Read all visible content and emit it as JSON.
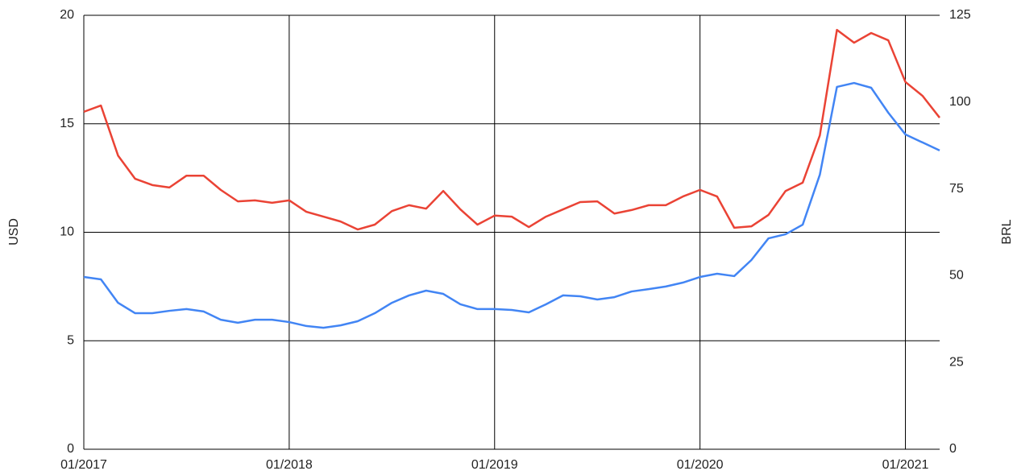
{
  "chart_data": {
    "type": "line",
    "ylabel": "USD",
    "y2label": "BRL",
    "x": [
      "01/2017",
      "02/2017",
      "03/2017",
      "04/2017",
      "05/2017",
      "06/2017",
      "07/2017",
      "08/2017",
      "09/2017",
      "10/2017",
      "11/2017",
      "12/2017",
      "01/2018",
      "02/2018",
      "03/2018",
      "04/2018",
      "05/2018",
      "06/2018",
      "07/2018",
      "08/2018",
      "09/2018",
      "10/2018",
      "11/2018",
      "12/2018",
      "01/2019",
      "02/2019",
      "03/2019",
      "04/2019",
      "05/2019",
      "06/2019",
      "07/2019",
      "08/2019",
      "09/2019",
      "10/2019",
      "11/2019",
      "12/2019",
      "01/2020",
      "02/2020",
      "03/2020",
      "04/2020",
      "05/2020",
      "06/2020",
      "07/2020",
      "08/2020",
      "09/2020",
      "10/2020",
      "11/2020",
      "12/2020",
      "01/2021",
      "02/2021",
      "03/2021"
    ],
    "xlim": [
      "01/2017",
      "03/2021"
    ],
    "xticks": [
      "01/2017",
      "01/2018",
      "01/2019",
      "01/2020",
      "01/2021"
    ],
    "ylim": [
      0,
      20
    ],
    "yticks": [
      0,
      5,
      10,
      15,
      20
    ],
    "y2lim": [
      0,
      125
    ],
    "y2ticks": [
      0,
      25,
      50,
      75,
      100,
      125
    ],
    "grid": true,
    "series": [
      {
        "color": "#4285f4",
        "values": [
          7.94,
          7.83,
          6.75,
          6.27,
          6.27,
          6.38,
          6.46,
          6.35,
          5.97,
          5.83,
          5.97,
          5.97,
          5.86,
          5.68,
          5.6,
          5.71,
          5.9,
          6.27,
          6.75,
          7.09,
          7.31,
          7.16,
          6.68,
          6.46,
          6.46,
          6.42,
          6.31,
          6.68,
          7.09,
          7.05,
          6.9,
          7.01,
          7.27,
          7.38,
          7.5,
          7.68,
          7.94,
          8.09,
          7.98,
          8.72,
          9.72,
          9.91,
          10.35,
          12.65,
          16.7,
          16.88,
          16.66,
          15.51,
          14.51,
          14.14,
          13.77
        ]
      },
      {
        "color": "#ea4335",
        "axis": "y2",
        "values": [
          97.2,
          99.0,
          84.6,
          77.9,
          76.1,
          75.4,
          78.8,
          78.8,
          74.7,
          71.4,
          71.7,
          71.0,
          71.7,
          68.4,
          67.0,
          65.6,
          63.3,
          64.7,
          68.6,
          70.3,
          69.3,
          74.4,
          69.1,
          64.7,
          67.3,
          67.0,
          64.0,
          67.0,
          69.1,
          71.2,
          71.4,
          67.9,
          68.9,
          70.3,
          70.3,
          72.8,
          74.7,
          72.8,
          63.8,
          64.2,
          67.5,
          74.4,
          76.8,
          90.4,
          120.8,
          117.1,
          119.9,
          117.8,
          105.8,
          101.8,
          95.5
        ]
      }
    ]
  }
}
